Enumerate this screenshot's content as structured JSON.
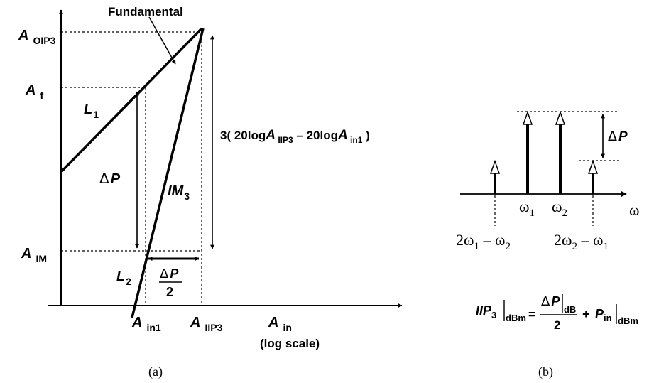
{
  "panel_a": {
    "fundamental_label": "Fundamental",
    "y_labels": {
      "oip3_A": "A",
      "oip3_sub": "OIP3",
      "f_A": "A",
      "f_sub": "f",
      "im_A": "A",
      "im_sub": "IM"
    },
    "x_labels": {
      "in1_A": "A",
      "in1_sub": "in1",
      "iip3_A": "A",
      "iip3_sub": "IIP3",
      "in_A": "A",
      "in_sub": "in",
      "log_scale": "(log scale)"
    },
    "L1": "L",
    "L1_sub": "1",
    "L2": "L",
    "L2_sub": "2",
    "IM3": "IM",
    "IM3_sub": "3",
    "delta_P": "Δ",
    "P": "P",
    "half_den": "2",
    "formula": {
      "prefix": "3( 20log",
      "A1": "A",
      "sub1": " IIP3",
      "mid": " – 20log",
      "A2": "A",
      "sub2": " in1",
      "suffix": " )"
    },
    "caption": "(a)"
  },
  "panel_b": {
    "delta": "Δ",
    "P": "P",
    "omega_axis": "ω",
    "w1": "ω",
    "w1_sub": "1",
    "w2": "ω",
    "w2_sub": "2",
    "im_left": {
      "a": "2ω",
      "a_sub": "1",
      "b": " – ω",
      "b_sub": "2"
    },
    "im_right": {
      "a": "2ω",
      "a_sub": "2",
      "b": " – ω",
      "b_sub": "1"
    },
    "equation": {
      "lhs": "IIP",
      "lhs_sub": "3",
      "lhs_unit": "dBm",
      "eq": "=",
      "num_delta": "Δ",
      "num_P": "P",
      "num_unit": "dB",
      "den": "2",
      "plus": "+",
      "pin": "P",
      "pin_sub": "in",
      "pin_unit": "dBm"
    },
    "caption": "(b)"
  },
  "colors": {
    "ink": "#000000",
    "background": "#ffffff"
  }
}
